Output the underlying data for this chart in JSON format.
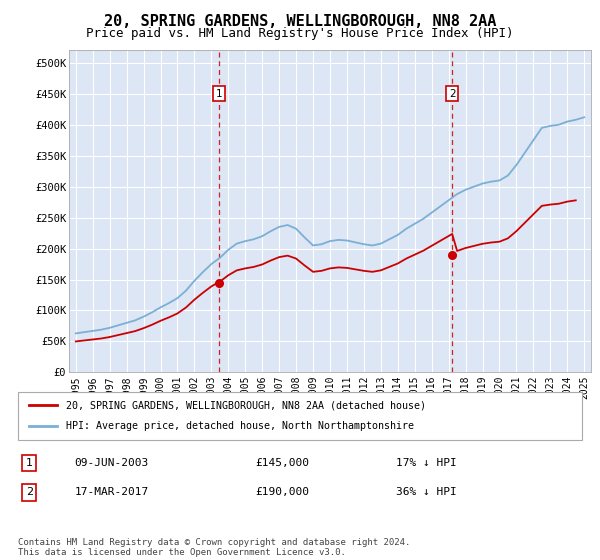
{
  "title": "20, SPRING GARDENS, WELLINGBOROUGH, NN8 2AA",
  "subtitle": "Price paid vs. HM Land Registry's House Price Index (HPI)",
  "title_fontsize": 11,
  "subtitle_fontsize": 9,
  "bg_color": "#dce6f5",
  "fig_bg_color": "#ffffff",
  "grid_color": "#ffffff",
  "line_color_hpi": "#7bafd4",
  "line_color_price": "#cc0000",
  "ylim": [
    0,
    520000
  ],
  "yticks": [
    0,
    50000,
    100000,
    150000,
    200000,
    250000,
    300000,
    350000,
    400000,
    450000,
    500000
  ],
  "xlim_start": 1994.6,
  "xlim_end": 2025.4,
  "legend_label1": "20, SPRING GARDENS, WELLINGBOROUGH, NN8 2AA (detached house)",
  "legend_label2": "HPI: Average price, detached house, North Northamptonshire",
  "footnote": "Contains HM Land Registry data © Crown copyright and database right 2024.\nThis data is licensed under the Open Government Licence v3.0.",
  "marker1_x": 2003.44,
  "marker2_x": 2017.21,
  "marker1_y": 145000,
  "marker2_y": 190000,
  "marker1_label": "09-JUN-2003",
  "marker1_price_str": "£145,000",
  "marker1_hpi_str": "17% ↓ HPI",
  "marker2_label": "17-MAR-2017",
  "marker2_price_str": "£190,000",
  "marker2_hpi_str": "36% ↓ HPI"
}
